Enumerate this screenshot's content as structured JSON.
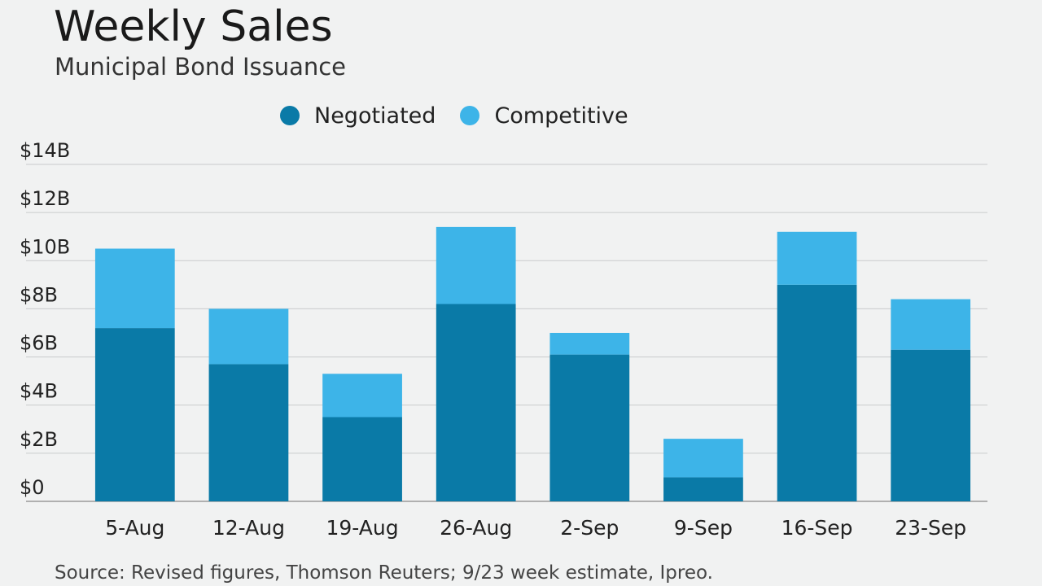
{
  "chart_data": {
    "type": "bar",
    "stacked": true,
    "title": "Weekly Sales",
    "subtitle": "Municipal Bond Issuance",
    "categories": [
      "5-Aug",
      "12-Aug",
      "19-Aug",
      "26-Aug",
      "2-Sep",
      "9-Sep",
      "16-Sep",
      "23-Sep"
    ],
    "series": [
      {
        "name": "Negotiated",
        "color": "#0a7aa7",
        "values": [
          7.2,
          5.7,
          3.5,
          8.2,
          6.1,
          1.0,
          9.0,
          6.3
        ]
      },
      {
        "name": "Competitive",
        "color": "#3db4e8",
        "values": [
          3.3,
          2.3,
          1.8,
          3.2,
          0.9,
          1.6,
          2.2,
          2.1
        ]
      }
    ],
    "ylim": [
      0,
      14
    ],
    "yticks": [
      0,
      2,
      4,
      6,
      8,
      10,
      12,
      14
    ],
    "ytick_labels": [
      "$0",
      "$2B",
      "$4B",
      "$6B",
      "$8B",
      "$10B",
      "$12B",
      "$14B"
    ],
    "grid": true,
    "legend_position": "top-center",
    "source": "Source: Revised figures, Thomson Reuters; 9/23 week estimate, Ipreo."
  }
}
